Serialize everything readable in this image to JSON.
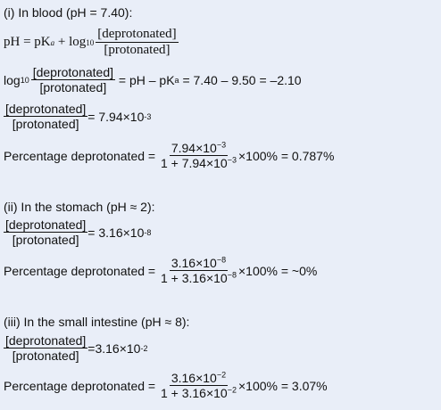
{
  "blood": {
    "heading": "(i) In blood (pH = 7.40):",
    "eq1": {
      "lhs": "pH = pK",
      "a": "a",
      "plus_log": " + log",
      "ten": "10",
      "num": "[deprotonated]",
      "den": "[protonated]"
    },
    "eq2": {
      "log": "log",
      "ten": "10",
      "num": "[deprotonated]",
      "den": "[protonated]",
      "rhs_a": " = pH – pK",
      "a": "a",
      "rhs_b": " = 7.40 – 9.50 = –2.10"
    },
    "eq3": {
      "num": "[deprotonated]",
      "den": "[protonated]",
      "rhs": "= 7.94×10",
      "exp": "-3"
    },
    "eq4": {
      "label": "Percentage deprotonated = ",
      "num": "7.94×10",
      "num_exp": "−3",
      "den": "1 + 7.94×10",
      "den_exp": "−3",
      "rhs": "×100% = 0.787%"
    }
  },
  "stomach": {
    "heading": "(ii) In the stomach (pH ≈ 2):",
    "eq1": {
      "num": "[deprotonated]",
      "den": "[protonated]",
      "rhs": "= 3.16×10",
      "exp": "-8"
    },
    "eq2": {
      "label": "Percentage deprotonated = ",
      "num": "3.16×10",
      "num_exp": "−8",
      "den": "1 + 3.16×10",
      "den_exp": "−8",
      "rhs": "×100% = ~0%"
    }
  },
  "intestine": {
    "heading": "(iii) In the small intestine (pH ≈ 8):",
    "eq1": {
      "num": "[deprotonated]",
      "den": "[protonated]",
      "rhs": "=3.16×10",
      "exp": "-2"
    },
    "eq2": {
      "label": "Percentage deprotonated = ",
      "num": "3.16×10",
      "num_exp": "−2",
      "den": "1 + 3.16×10",
      "den_exp": "−2",
      "rhs": "×100% = 3.07%"
    }
  }
}
